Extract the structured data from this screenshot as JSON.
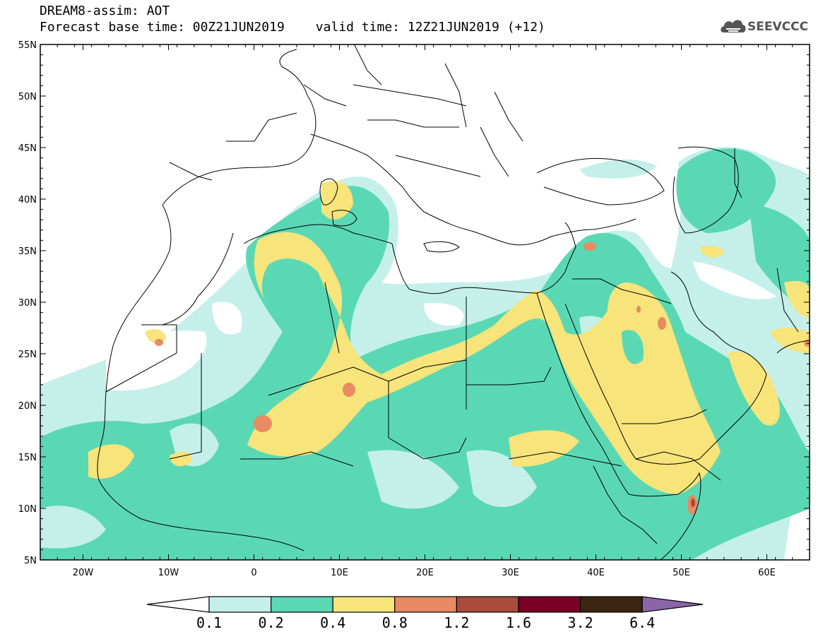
{
  "header": {
    "line1": "DREAM8-assim: AOT",
    "base_label": "Forecast base time: 00Z21JUN2019",
    "valid_label": "valid time: 12Z21JUN2019 (+12)"
  },
  "logo": {
    "text": "SEEVCCC",
    "icon": "cloud-icon",
    "color": "#555555"
  },
  "map": {
    "lon_range": [
      -25,
      65
    ],
    "lat_range": [
      5,
      55
    ],
    "lat_ticks": [
      "55N",
      "50N",
      "45N",
      "40N",
      "35N",
      "30N",
      "25N",
      "20N",
      "15N",
      "10N",
      "5N"
    ],
    "lon_ticks": [
      "20W",
      "10W",
      "0",
      "10E",
      "20E",
      "30E",
      "40E",
      "50E",
      "60E"
    ]
  },
  "colorbar": {
    "labels": [
      "0.1",
      "0.2",
      "0.4",
      "0.8",
      "1.2",
      "1.6",
      "3.2",
      "6.4"
    ],
    "colors": [
      "#c4f0e9",
      "#5ad8b4",
      "#f7e47a",
      "#e88a62",
      "#aa4b3c",
      "#7a0026",
      "#3d2512",
      "#8c64a8"
    ],
    "under_color": "#ffffff"
  }
}
